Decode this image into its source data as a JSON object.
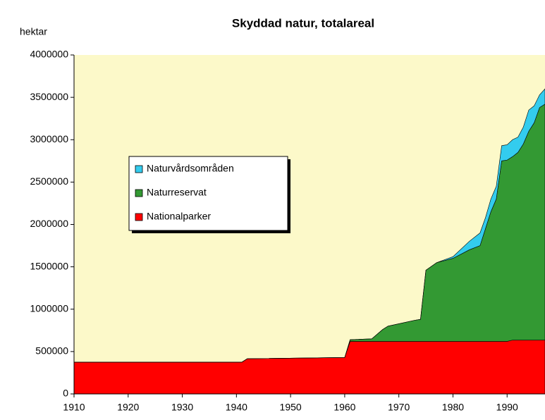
{
  "chart_data": {
    "type": "area",
    "stacked": true,
    "title": "Skyddad natur, totalareal",
    "y_label": "hektar",
    "x": [
      1910,
      1941,
      1942,
      1960,
      1961,
      1965,
      1967,
      1968,
      1973,
      1974,
      1975,
      1977,
      1980,
      1983,
      1985,
      1986,
      1987,
      1988,
      1989,
      1990,
      1991,
      1992,
      1993,
      1994,
      1995,
      1996,
      1997
    ],
    "series": [
      {
        "name": "Nationalparker",
        "color": "#ff0000",
        "values": [
          375000,
          375000,
          415000,
          430000,
          620000,
          620000,
          620000,
          620000,
          620000,
          620000,
          620000,
          620000,
          620000,
          620000,
          620000,
          620000,
          620000,
          620000,
          620000,
          620000,
          635000,
          635000,
          635000,
          635000,
          635000,
          635000,
          635000
        ]
      },
      {
        "name": "Naturreservat",
        "color": "#339933",
        "values": [
          0,
          0,
          0,
          0,
          20000,
          30000,
          140000,
          180000,
          250000,
          260000,
          840000,
          930000,
          980000,
          1080000,
          1130000,
          1330000,
          1530000,
          1680000,
          2130000,
          2140000,
          2165000,
          2215000,
          2315000,
          2465000,
          2565000,
          2745000,
          2785000
        ]
      },
      {
        "name": "Naturvårdsområden",
        "color": "#33ccee",
        "values": [
          0,
          0,
          0,
          0,
          0,
          0,
          0,
          0,
          0,
          0,
          0,
          0,
          20000,
          100000,
          150000,
          130000,
          150000,
          150000,
          180000,
          180000,
          200000,
          180000,
          200000,
          250000,
          200000,
          150000,
          180000
        ]
      }
    ],
    "xlim": [
      1910,
      1997
    ],
    "xticks": [
      1910,
      1920,
      1930,
      1940,
      1950,
      1960,
      1970,
      1980,
      1990
    ],
    "ylim": [
      0,
      4000000
    ],
    "yticks": [
      0,
      500000,
      1000000,
      1500000,
      2000000,
      2500000,
      3000000,
      3500000,
      4000000
    ],
    "grid": false,
    "plot_background": "#fcf9c9"
  }
}
